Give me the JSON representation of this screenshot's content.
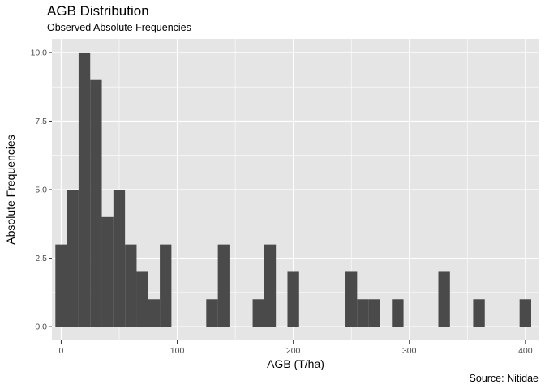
{
  "chart_data": {
    "type": "bar",
    "title": "AGB Distribution",
    "subtitle": "Observed Absolute Frequencies",
    "caption": "Source: Nitidae",
    "xlabel": "AGB (T/ha)",
    "ylabel": "Absolute Frequencies",
    "xlim": [
      -8,
      412
    ],
    "ylim": [
      -0.5,
      10.5
    ],
    "x_ticks": [
      0,
      100,
      200,
      300,
      400
    ],
    "x_tick_labels": [
      "0",
      "100",
      "200",
      "300",
      "400"
    ],
    "y_ticks": [
      0,
      2.5,
      5,
      7.5,
      10
    ],
    "y_tick_labels": [
      "0.0",
      "2.5",
      "5.0",
      "7.5",
      "10.0"
    ],
    "bin_width": 10,
    "bin_centers": [
      0,
      10,
      20,
      30,
      40,
      50,
      60,
      70,
      80,
      90,
      130,
      140,
      170,
      180,
      200,
      250,
      260,
      270,
      290,
      330,
      360,
      400
    ],
    "counts": [
      3,
      5,
      10,
      9,
      4,
      5,
      3,
      2,
      1,
      3,
      1,
      3,
      1,
      3,
      2,
      2,
      1,
      1,
      1,
      2,
      1,
      1
    ],
    "panel_background": "#e5e5e5",
    "bar_color": "#4a4a4a",
    "grid_color": "#ffffff"
  }
}
